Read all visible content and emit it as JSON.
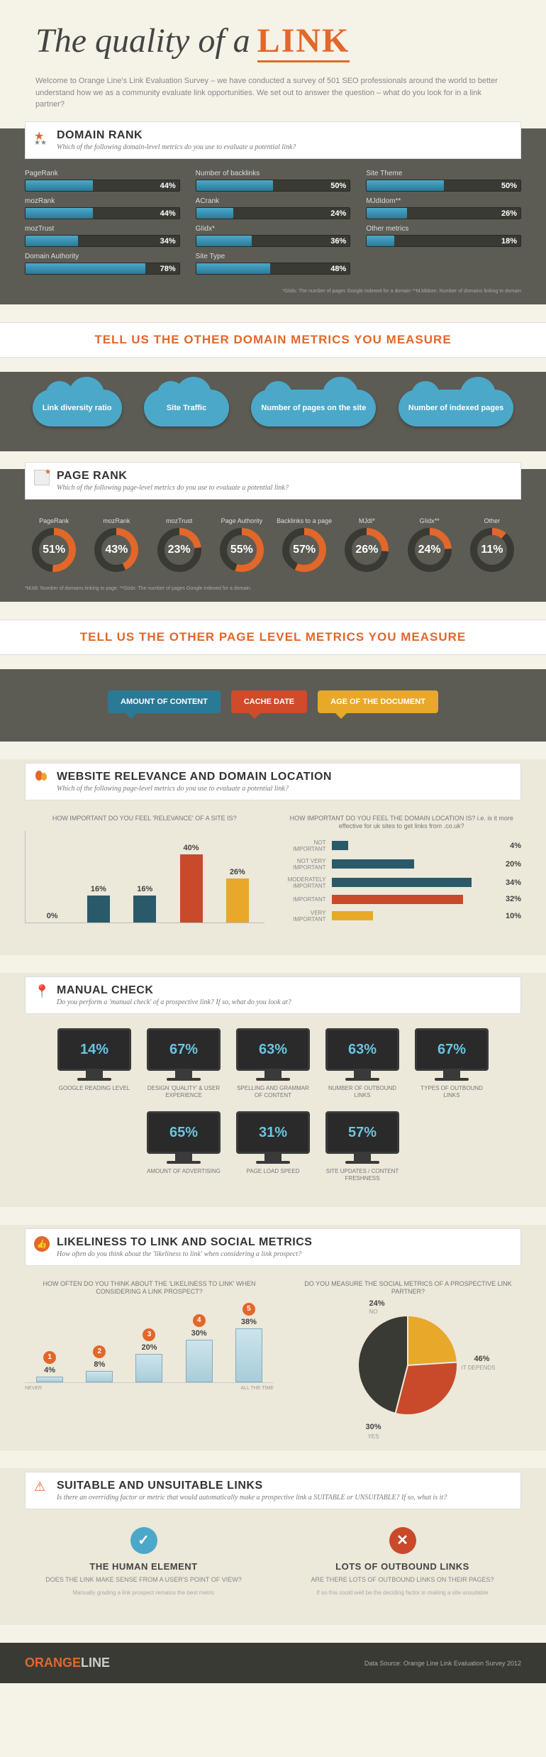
{
  "title_prefix": "The quality of a",
  "title_link": "LINK",
  "intro": "Welcome to Orange Line's Link Evaluation Survey – we have conducted a survey of 501 SEO professionals around the world to better understand how we as a community evaluate link opportunities. We set out to answer the question – what do you look for in a link partner?",
  "domain_rank": {
    "heading": "DOMAIN RANK",
    "sub": "Which of the following domain-level metrics do you use to evaluate a potential link?",
    "bars": [
      {
        "label": "PageRank",
        "pct": 44
      },
      {
        "label": "Number of backlinks",
        "pct": 50
      },
      {
        "label": "Site Theme",
        "pct": 50
      },
      {
        "label": "mozRank",
        "pct": 44
      },
      {
        "label": "ACrank",
        "pct": 24
      },
      {
        "label": "MJdIdom**",
        "pct": 26
      },
      {
        "label": "mozTrust",
        "pct": 34
      },
      {
        "label": "GIidx*",
        "pct": 36
      },
      {
        "label": "Other metrics",
        "pct": 18
      },
      {
        "label": "Domain Authority",
        "pct": 78
      },
      {
        "label": "Site Type",
        "pct": 48
      }
    ],
    "footnote": "*GIidx: The number of pages Google indexed for a domain   **MJdIdom: Number of domains linking to domain",
    "bar_color": "#4ba8c9",
    "track_color": "#3a3a34"
  },
  "banner1": "TELL US THE OTHER DOMAIN METRICS YOU MEASURE",
  "clouds": [
    "Link diversity ratio",
    "Site Traffic",
    "Number of pages on the site",
    "Number of indexed pages"
  ],
  "cloud_color": "#4ba8c9",
  "page_rank": {
    "heading": "PAGE RANK",
    "sub": "Which of the following page-level metrics do you use to evaluate a potential link?",
    "donuts": [
      {
        "label": "PageRank",
        "pct": 51,
        "color": "#e2672a"
      },
      {
        "label": "mozRank",
        "pct": 43,
        "color": "#e2672a"
      },
      {
        "label": "mozTrust",
        "pct": 23,
        "color": "#e2672a"
      },
      {
        "label": "Page Authority",
        "pct": 55,
        "color": "#e2672a"
      },
      {
        "label": "Backlinks to a page",
        "pct": 57,
        "color": "#e2672a"
      },
      {
        "label": "MJdI*",
        "pct": 26,
        "color": "#e2672a"
      },
      {
        "label": "GIidx**",
        "pct": 24,
        "color": "#e2672a"
      },
      {
        "label": "Other",
        "pct": 11,
        "color": "#e2672a"
      }
    ],
    "donut_bg": "#3a3a34",
    "footnote": "*MJdI: Number of domains linking to page.   **GIidx: The number of pages Google indexed for a domain."
  },
  "banner2": "TELL US THE OTHER PAGE LEVEL METRICS YOU MEASURE",
  "bubbles": [
    {
      "text": "AMOUNT OF CONTENT",
      "color": "#2a7a96"
    },
    {
      "text": "CACHE DATE",
      "color": "#d14a2a"
    },
    {
      "text": "AGE OF THE DOCUMENT",
      "color": "#e8a82a"
    }
  ],
  "relevance": {
    "heading": "WEBSITE RELEVANCE AND DOMAIN LOCATION",
    "sub": "Which of the following page-level metrics do you use to evaluate a potential link?",
    "left_title": "HOW IMPORTANT DO YOU FEEL 'RELEVANCE' OF A SITE IS?",
    "right_title": "HOW IMPORTANT DO YOU FEEL THE DOMAIN LOCATION IS? i.e. is it more effective for uk sites to get links from .co.uk?",
    "vbars": [
      {
        "label": "NOT IMPORTANT",
        "pct": 0,
        "color": "#2a5a6a"
      },
      {
        "label": "NOT VERY IMPORTANT",
        "pct": 16,
        "color": "#2a5a6a"
      },
      {
        "label": "MODERATELY IMPORTANT",
        "pct": 16,
        "color": "#2a5a6a"
      },
      {
        "label": "IMPORTANT",
        "pct": 40,
        "color": "#c84a2a"
      },
      {
        "label": "VERY IMPORTANT",
        "pct": 26,
        "color": "#e8a82a"
      }
    ],
    "vbar_ymax": 50,
    "hbars": [
      {
        "label": "NOT IMPORTANT",
        "pct": 4,
        "color": "#2a5a6a"
      },
      {
        "label": "NOT VERY IMPORTANT",
        "pct": 20,
        "color": "#2a5a6a"
      },
      {
        "label": "MODERATELY IMPORTANT",
        "pct": 34,
        "color": "#2a5a6a"
      },
      {
        "label": "IMPORTANT",
        "pct": 32,
        "color": "#c84a2a"
      },
      {
        "label": "VERY IMPORTANT",
        "pct": 10,
        "color": "#e8a82a"
      }
    ],
    "hbar_xmax": 40
  },
  "manual": {
    "heading": "MANUAL CHECK",
    "sub": "Do you perform a 'manual check' of a prospective link? If so, what do you look at?",
    "items": [
      {
        "pct": "14%",
        "label": "GOOGLE READING LEVEL"
      },
      {
        "pct": "67%",
        "label": "DESIGN 'QUALITY' & USER EXPERIENCE"
      },
      {
        "pct": "63%",
        "label": "SPELLING AND GRAMMAR OF CONTENT"
      },
      {
        "pct": "63%",
        "label": "NUMBER OF OUTBOUND LINKS"
      },
      {
        "pct": "67%",
        "label": "TYPES OF OUTBOUND LINKS"
      },
      {
        "pct": "65%",
        "label": "AMOUNT OF ADVERTISING"
      },
      {
        "pct": "31%",
        "label": "PAGE LOAD SPEED"
      },
      {
        "pct": "57%",
        "label": "SITE UPDATES / CONTENT FRESHNESS"
      }
    ],
    "screen_color": "#6bc4e0"
  },
  "likeliness": {
    "heading": "LIKELINESS TO LINK AND SOCIAL METRICS",
    "sub": "How often do you think about the 'likeliness to link' when considering a link prospect?",
    "left_title": "HOW OFTEN DO YOU THINK ABOUT THE 'LIKELINESS TO LINK' WHEN CONSIDERING A LINK PROSPECT?",
    "right_title": "DO YOU MEASURE THE SOCIAL METRICS OF A PROSPECTIVE LINK PARTNER?",
    "bars": [
      {
        "n": "1",
        "pct": 4
      },
      {
        "n": "2",
        "pct": 8
      },
      {
        "n": "3",
        "pct": 20
      },
      {
        "n": "4",
        "pct": 30
      },
      {
        "n": "5",
        "pct": 38
      }
    ],
    "bar_ymax": 40,
    "axis_left": "NEVER",
    "axis_right": "ALL THE TIME",
    "pie": [
      {
        "label": "NO",
        "pct": 24,
        "color": "#e8a82a"
      },
      {
        "label": "YES",
        "pct": 30,
        "color": "#c84a2a"
      },
      {
        "label": "IT DEPENDS",
        "pct": 46,
        "color": "#3a3a34"
      }
    ]
  },
  "suitable": {
    "heading": "SUITABLE AND UNSUITABLE LINKS",
    "sub": "Is there an overriding factor or metric that would automatically make a prospective link a SUITABLE or UNSUITABLE? If so, what is it?",
    "left": {
      "icon_color": "#4ba8c9",
      "icon": "✓",
      "title": "THE HUMAN ELEMENT",
      "q": "DOES THE LINK MAKE SENSE FROM A USER'S POINT OF VIEW?",
      "a": "Manually grading a link prospect remains the best metric"
    },
    "right": {
      "icon_color": "#c84a2a",
      "icon": "✕",
      "title": "LOTS OF OUTBOUND LINKS",
      "q": "ARE THERE LOTS OF OUTBOUND LINKS ON THEIR PAGES?",
      "a": "If so this could well be the deciding factor in making a site unsuitable"
    }
  },
  "footer": {
    "logo1": "ORANGE",
    "logo2": "LINE",
    "src": "Data Source: Orange Line Link Evaluation Survey 2012"
  },
  "colors": {
    "accent": "#e2672a",
    "dark_bg": "#5c5c55",
    "light_bg": "#ece8da",
    "page_bg": "#f5f2e8"
  }
}
